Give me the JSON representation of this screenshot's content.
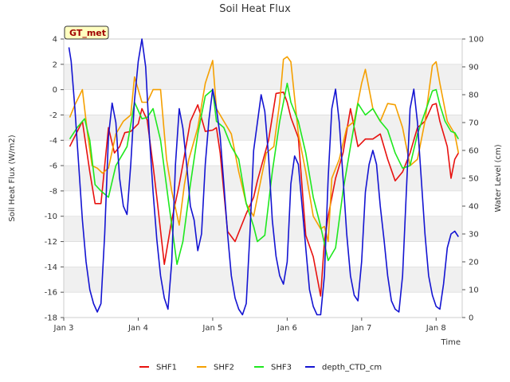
{
  "chart_data": {
    "type": "line",
    "title": "Soil Heat Flux",
    "xlabel": "Time",
    "ylabel": "Soil Heat Flux (W/m2)",
    "y2label": "Water Level (cm)",
    "badge": "GT_met",
    "xlim": [
      0,
      5.35
    ],
    "ylim": [
      -18,
      4
    ],
    "y2lim": [
      0,
      100
    ],
    "x_ticks": [
      {
        "v": 0,
        "label": "Jan 3"
      },
      {
        "v": 1,
        "label": "Jan 4"
      },
      {
        "v": 2,
        "label": "Jan 5"
      },
      {
        "v": 3,
        "label": "Jan 6"
      },
      {
        "v": 4,
        "label": "Jan 7"
      },
      {
        "v": 5,
        "label": "Jan 8"
      }
    ],
    "y_ticks": [
      {
        "v": 4,
        "label": "4"
      },
      {
        "v": 2,
        "label": "2"
      },
      {
        "v": 0,
        "label": "0"
      },
      {
        "v": -2,
        "label": "-2"
      },
      {
        "v": -4,
        "label": "-4"
      },
      {
        "v": -6,
        "label": "-6"
      },
      {
        "v": -8,
        "label": "-8"
      },
      {
        "v": -10,
        "label": "-10"
      },
      {
        "v": -12,
        "label": "-12"
      },
      {
        "v": -14,
        "label": "-14"
      },
      {
        "v": -16,
        "label": "-16"
      },
      {
        "v": -18,
        "label": "-18"
      }
    ],
    "y2_ticks": [
      {
        "v": 0,
        "label": "0"
      },
      {
        "v": 10,
        "label": "10"
      },
      {
        "v": 20,
        "label": "20"
      },
      {
        "v": 30,
        "label": "30"
      },
      {
        "v": 40,
        "label": "40"
      },
      {
        "v": 50,
        "label": "50"
      },
      {
        "v": 60,
        "label": "60"
      },
      {
        "v": 70,
        "label": "70"
      },
      {
        "v": 80,
        "label": "80"
      },
      {
        "v": 90,
        "label": "90"
      },
      {
        "v": 100,
        "label": "100"
      }
    ],
    "grid": "horizontal bands",
    "legend_position": "bottom",
    "series": [
      {
        "name": "SHF1",
        "color": "#e8110f",
        "axis": "left",
        "x": [
          0.08,
          0.25,
          0.35,
          0.42,
          0.5,
          0.6,
          0.68,
          0.75,
          0.82,
          0.9,
          1.0,
          1.05,
          1.12,
          1.2,
          1.25,
          1.35,
          1.45,
          1.55,
          1.6,
          1.7,
          1.8,
          1.9,
          2.0,
          2.05,
          2.1,
          2.2,
          2.3,
          2.45,
          2.55,
          2.6,
          2.75,
          2.85,
          2.95,
          3.0,
          3.05,
          3.15,
          3.25,
          3.35,
          3.45,
          3.5,
          3.55,
          3.65,
          3.75,
          3.85,
          3.95,
          4.05,
          4.15,
          4.25,
          4.35,
          4.45,
          4.55,
          4.65,
          4.75,
          4.85,
          4.95,
          5.0,
          5.05,
          5.15,
          5.2,
          5.25,
          5.3
        ],
        "y": [
          -4.5,
          -2.5,
          -6.5,
          -9.0,
          -9.0,
          -3.0,
          -5.0,
          -4.5,
          -3.4,
          -3.3,
          -2.7,
          -1.5,
          -2.4,
          -6.0,
          -8.5,
          -13.8,
          -10.3,
          -7.5,
          -5.9,
          -2.5,
          -1.2,
          -3.3,
          -3.2,
          -3.0,
          -5.0,
          -11.2,
          -12.0,
          -9.8,
          -8.5,
          -7.2,
          -4.0,
          -0.3,
          -0.2,
          -1.0,
          -2.2,
          -3.8,
          -11.5,
          -13.2,
          -16.3,
          -12.0,
          -10.0,
          -7.0,
          -5.0,
          -1.5,
          -4.5,
          -3.9,
          -3.9,
          -3.5,
          -5.5,
          -7.2,
          -6.5,
          -5.0,
          -3.0,
          -2.5,
          -1.2,
          -1.1,
          -2.5,
          -4.5,
          -7.0,
          -5.5,
          -5.0
        ]
      },
      {
        "name": "SHF2",
        "color": "#f5a000",
        "axis": "left",
        "x": [
          0.08,
          0.15,
          0.25,
          0.32,
          0.38,
          0.45,
          0.52,
          0.6,
          0.7,
          0.8,
          0.9,
          0.95,
          1.05,
          1.12,
          1.2,
          1.3,
          1.38,
          1.45,
          1.55,
          1.62,
          1.68,
          1.8,
          1.9,
          2.0,
          2.05,
          2.15,
          2.25,
          2.35,
          2.45,
          2.55,
          2.6,
          2.72,
          2.82,
          2.9,
          2.95,
          3.0,
          3.05,
          3.15,
          3.25,
          3.35,
          3.45,
          3.5,
          3.55,
          3.6,
          3.7,
          3.8,
          3.9,
          4.0,
          4.05,
          4.15,
          4.25,
          4.35,
          4.45,
          4.55,
          4.65,
          4.75,
          4.85,
          4.95,
          5.0,
          5.05,
          5.15,
          5.2,
          5.25,
          5.3
        ],
        "y": [
          -2.2,
          -1.2,
          0.0,
          -3.5,
          -6.0,
          -6.2,
          -6.6,
          -6.2,
          -3.5,
          -2.5,
          -2.0,
          1.0,
          -1.0,
          -1.0,
          0.0,
          0.0,
          -5.5,
          -8.0,
          -10.7,
          -7.5,
          -5.5,
          -3.0,
          0.5,
          2.3,
          -1.5,
          -2.5,
          -3.5,
          -6.5,
          -9.0,
          -10.0,
          -8.5,
          -5.0,
          -4.5,
          -1.0,
          2.4,
          2.6,
          2.2,
          -3.5,
          -6.5,
          -10.0,
          -11.0,
          -10.8,
          -12.0,
          -7.0,
          -5.5,
          -3.0,
          -2.5,
          0.5,
          1.6,
          -1.5,
          -2.5,
          -1.1,
          -1.2,
          -3.0,
          -6.0,
          -5.5,
          -2.5,
          1.9,
          2.2,
          0.5,
          -2.5,
          -3.0,
          -3.5,
          -5.0
        ]
      },
      {
        "name": "SHF3",
        "color": "#1ee81e",
        "axis": "left",
        "x": [
          0.08,
          0.18,
          0.28,
          0.35,
          0.42,
          0.5,
          0.6,
          0.7,
          0.8,
          0.85,
          0.95,
          1.05,
          1.12,
          1.2,
          1.3,
          1.4,
          1.52,
          1.6,
          1.7,
          1.8,
          1.9,
          2.0,
          2.05,
          2.15,
          2.25,
          2.35,
          2.45,
          2.55,
          2.6,
          2.7,
          2.8,
          2.9,
          3.0,
          3.05,
          3.15,
          3.25,
          3.35,
          3.45,
          3.55,
          3.65,
          3.75,
          3.85,
          3.95,
          4.05,
          4.15,
          4.25,
          4.35,
          4.45,
          4.55,
          4.65,
          4.75,
          4.85,
          4.95,
          5.0,
          5.05,
          5.12,
          5.2,
          5.25,
          5.3
        ],
        "y": [
          -3.9,
          -3.0,
          -2.3,
          -4.0,
          -7.5,
          -8.0,
          -8.5,
          -6.0,
          -5.0,
          -4.5,
          -1.0,
          -2.3,
          -2.2,
          -1.5,
          -4.0,
          -8.5,
          -13.8,
          -12.0,
          -7.5,
          -3.5,
          -0.5,
          0.0,
          -2.5,
          -3.0,
          -4.5,
          -5.5,
          -9.0,
          -10.8,
          -12.0,
          -11.5,
          -6.5,
          -2.5,
          0.5,
          -1.0,
          -2.5,
          -5.0,
          -8.5,
          -10.8,
          -13.5,
          -12.5,
          -8.0,
          -4.5,
          -1.1,
          -2.0,
          -1.5,
          -2.5,
          -3.2,
          -5.0,
          -6.2,
          -6.0,
          -3.5,
          -1.8,
          -0.1,
          0.0,
          -1.2,
          -2.5,
          -3.3,
          -3.4,
          -3.9
        ]
      },
      {
        "name": "depth_CTD_cm",
        "color": "#1414d2",
        "axis": "right",
        "x": [
          0.07,
          0.1,
          0.15,
          0.2,
          0.25,
          0.3,
          0.35,
          0.4,
          0.45,
          0.5,
          0.55,
          0.6,
          0.65,
          0.7,
          0.75,
          0.8,
          0.85,
          0.9,
          0.95,
          1.0,
          1.05,
          1.1,
          1.15,
          1.2,
          1.25,
          1.3,
          1.35,
          1.4,
          1.45,
          1.5,
          1.55,
          1.6,
          1.65,
          1.7,
          1.75,
          1.8,
          1.85,
          1.9,
          1.95,
          2.0,
          2.05,
          2.1,
          2.15,
          2.2,
          2.25,
          2.3,
          2.35,
          2.4,
          2.45,
          2.5,
          2.55,
          2.6,
          2.65,
          2.7,
          2.75,
          2.8,
          2.85,
          2.9,
          2.95,
          3.0,
          3.05,
          3.1,
          3.15,
          3.2,
          3.25,
          3.3,
          3.35,
          3.4,
          3.45,
          3.5,
          3.55,
          3.6,
          3.65,
          3.7,
          3.75,
          3.8,
          3.85,
          3.9,
          3.95,
          4.0,
          4.05,
          4.1,
          4.15,
          4.2,
          4.25,
          4.3,
          4.35,
          4.4,
          4.45,
          4.5,
          4.55,
          4.6,
          4.65,
          4.7,
          4.75,
          4.8,
          4.85,
          4.9,
          4.95,
          5.0,
          5.05,
          5.1,
          5.15,
          5.2,
          5.25,
          5.3
        ],
        "y": [
          97,
          92,
          75,
          55,
          35,
          20,
          10,
          5,
          2,
          5,
          30,
          65,
          77,
          70,
          50,
          40,
          37,
          55,
          78,
          92,
          100,
          90,
          65,
          45,
          28,
          15,
          7,
          3,
          20,
          55,
          75,
          68,
          55,
          40,
          35,
          24,
          30,
          55,
          71,
          82,
          75,
          65,
          48,
          30,
          15,
          7,
          3,
          1,
          5,
          30,
          60,
          70,
          80,
          74,
          58,
          35,
          22,
          15,
          12,
          20,
          48,
          58,
          55,
          40,
          25,
          10,
          4,
          1,
          1,
          15,
          50,
          75,
          82,
          70,
          50,
          30,
          15,
          8,
          6,
          20,
          45,
          55,
          60,
          55,
          40,
          28,
          15,
          6,
          3,
          2,
          15,
          45,
          75,
          82,
          70,
          50,
          30,
          15,
          8,
          4,
          3,
          12,
          25,
          30,
          31,
          29
        ]
      }
    ]
  }
}
